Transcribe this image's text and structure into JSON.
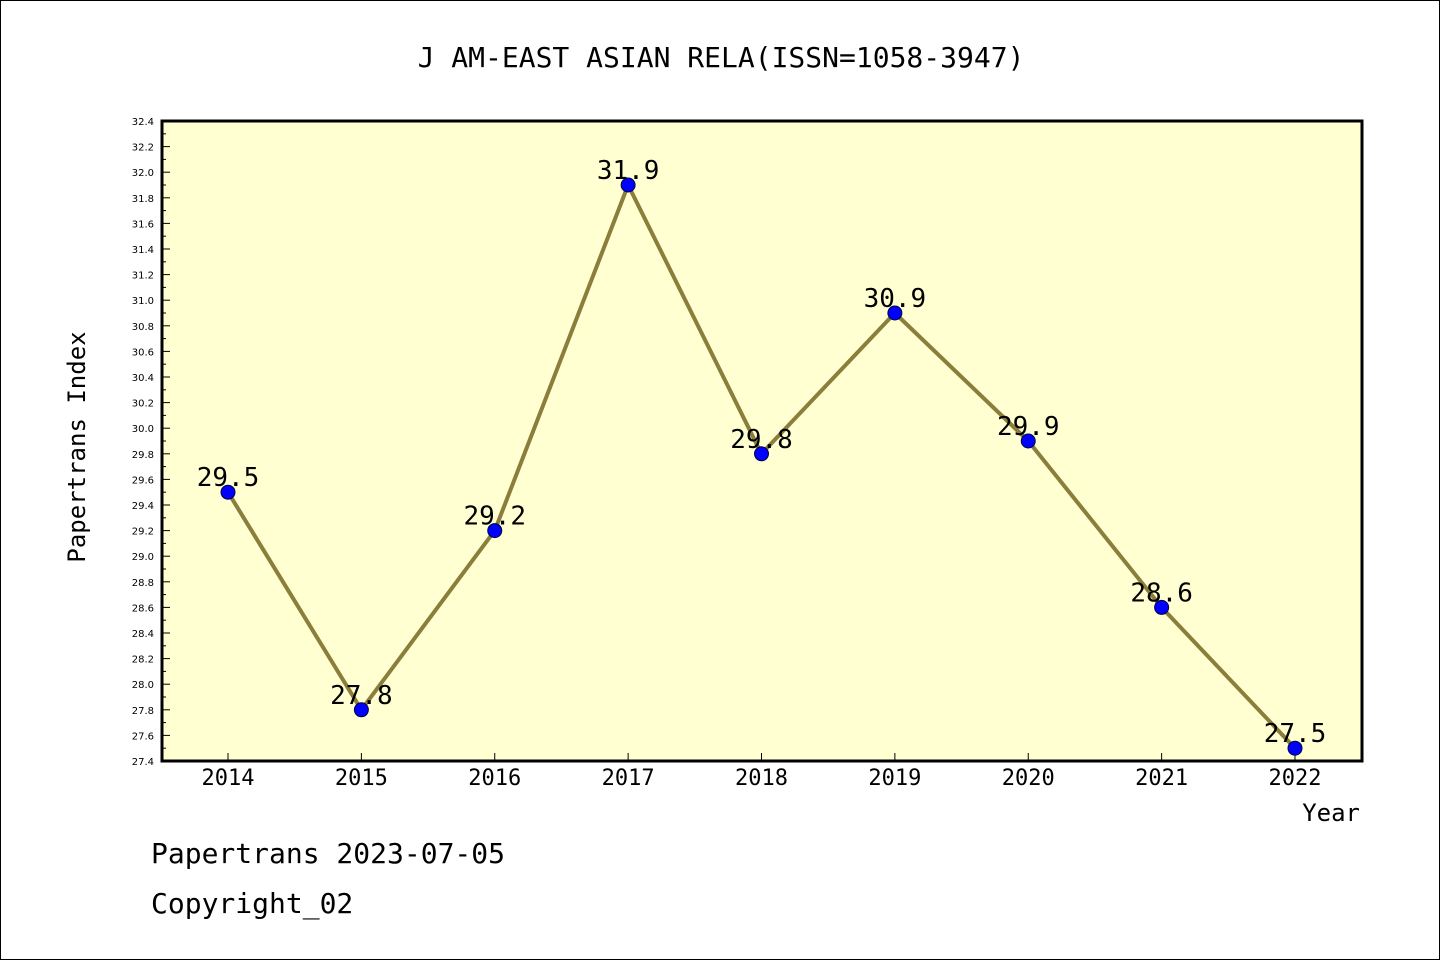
{
  "chart_data": {
    "type": "line",
    "title": "J AM-EAST ASIAN RELA(ISSN=1058-3947)",
    "xlabel": "Year",
    "ylabel": "Papertrans Index",
    "categories": [
      "2014",
      "2015",
      "2016",
      "2017",
      "2018",
      "2019",
      "2020",
      "2021",
      "2022"
    ],
    "series": [
      {
        "values": [
          29.5,
          27.8,
          29.2,
          31.9,
          29.8,
          30.9,
          29.9,
          28.6,
          27.5
        ],
        "data_labels": [
          "29.5",
          "27.8",
          "29.2",
          "31.9",
          "29.8",
          "30.9",
          "29.9",
          "28.6",
          "27.5"
        ],
        "line_color": "#8b7d3a",
        "marker_color": "#0000ff"
      }
    ],
    "ylim": [
      27.4,
      32.4
    ],
    "y_ticks": [
      "27.4",
      "27.6",
      "27.8",
      "28.0",
      "28.2",
      "28.4",
      "28.6",
      "28.8",
      "29.0",
      "29.2",
      "29.4",
      "29.6",
      "29.8",
      "30.0",
      "30.2",
      "30.4",
      "30.6",
      "30.8",
      "31.0",
      "31.2",
      "31.4",
      "31.6",
      "31.8",
      "32.0",
      "32.2",
      "32.4"
    ],
    "grid": false,
    "plot_background": "#ffffd2"
  },
  "footer": {
    "date_text": "Papertrans 2023-07-05",
    "copyright_text": "Copyright_02"
  }
}
